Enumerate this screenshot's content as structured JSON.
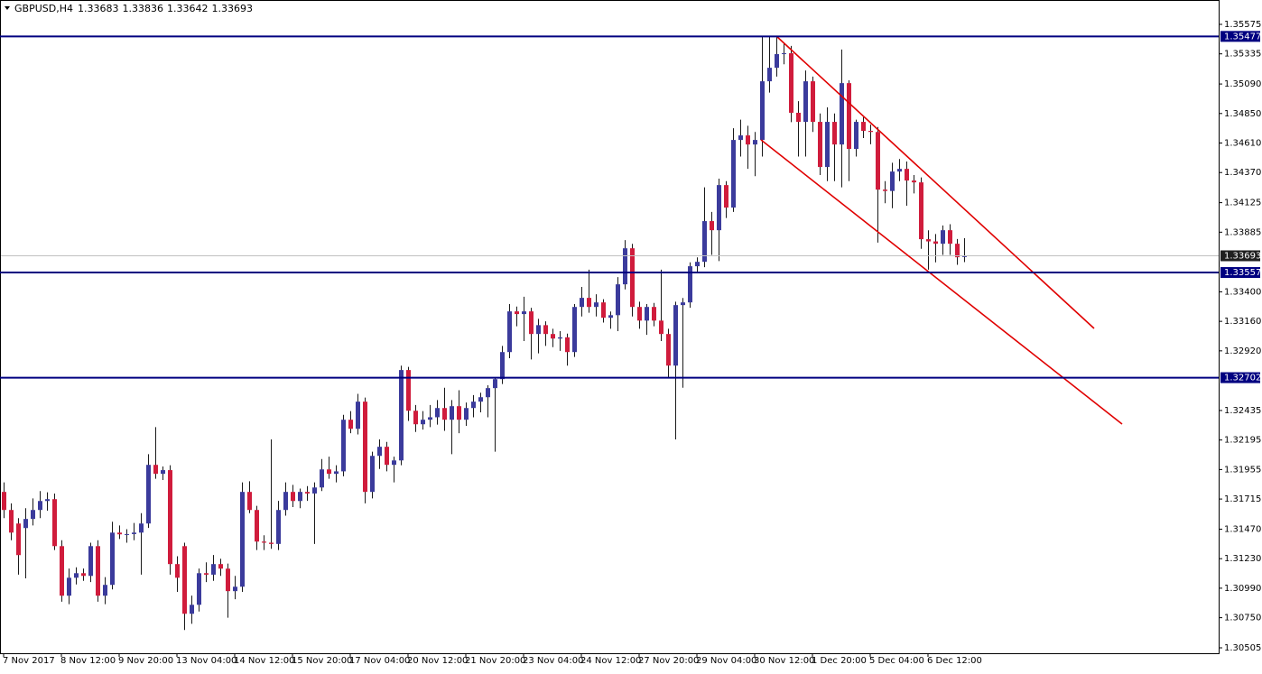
{
  "chart_data": {
    "type": "candlestick",
    "title": "GBPUSD,H4",
    "up_color": "#3b3b9c",
    "down_color": "#d01c3c",
    "wick_color": "#1a1a1a",
    "last_price_line_color": "#c0c0c0",
    "ylim": [
      1.30461,
      1.35773
    ],
    "yticks": [
      1.35575,
      1.35335,
      {
        "value": 1.3509,
        "label": "1.35090"
      },
      {
        "value": 1.3485,
        "label": "1.34850"
      },
      {
        "value": 1.3461,
        "label": "1.34610"
      },
      {
        "value": 1.3437,
        "label": "1.34370"
      },
      1.34125,
      1.33885,
      {
        "value": 1.334,
        "label": "1.33400"
      },
      {
        "value": 1.3316,
        "label": "1.33160"
      },
      {
        "value": 1.3292,
        "label": "1.32920"
      },
      1.32435,
      1.32195,
      1.31955,
      1.31715,
      {
        "value": 1.3147,
        "label": "1.31470"
      },
      {
        "value": 1.3123,
        "label": "1.31230"
      },
      {
        "value": 1.3099,
        "label": "1.30990"
      },
      {
        "value": 1.3075,
        "label": "1.30750"
      },
      1.30505
    ],
    "levels": [
      {
        "value": 1.35477,
        "color": "#000080"
      },
      {
        "value": 1.33557,
        "color": "#000080"
      },
      {
        "value": 1.32702,
        "color": "#000080"
      }
    ],
    "categories": [
      "7 Nov 2017",
      null,
      null,
      null,
      null,
      null,
      null,
      null,
      "8 Nov 12:00",
      null,
      null,
      null,
      null,
      null,
      null,
      null,
      "9 Nov 20:00",
      null,
      null,
      null,
      null,
      null,
      null,
      null,
      "13 Nov 04:00",
      null,
      null,
      null,
      null,
      null,
      null,
      null,
      "14 Nov 12:00",
      null,
      null,
      null,
      null,
      null,
      null,
      null,
      "15 Nov 20:00",
      null,
      null,
      null,
      null,
      null,
      null,
      null,
      "17 Nov 04:00",
      null,
      null,
      null,
      null,
      null,
      null,
      null,
      "20 Nov 12:00",
      null,
      null,
      null,
      null,
      null,
      null,
      null,
      "21 Nov 20:00",
      null,
      null,
      null,
      null,
      null,
      null,
      null,
      "23 Nov 04:00",
      null,
      null,
      null,
      null,
      null,
      null,
      null,
      "24 Nov 12:00",
      null,
      null,
      null,
      null,
      null,
      null,
      null,
      "27 Nov 20:00",
      null,
      null,
      null,
      null,
      null,
      null,
      null,
      "29 Nov 04:00",
      null,
      null,
      null,
      null,
      null,
      null,
      null,
      "30 Nov 12:00",
      null,
      null,
      null,
      null,
      null,
      null,
      null,
      "1 Dec 20:00",
      null,
      null,
      null,
      null,
      null,
      null,
      null,
      "5 Dec 04:00",
      null,
      null,
      null,
      null,
      null,
      null,
      null,
      "6 Dec 12:00",
      null,
      null,
      null,
      null,
      null
    ],
    "ohlc": [
      [
        1.31773,
        1.3185,
        1.3156,
        1.31626
      ],
      [
        1.31626,
        1.3168,
        1.3138,
        1.31442
      ],
      [
        1.31516,
        1.3156,
        1.311,
        1.31259
      ],
      [
        1.31479,
        1.3164,
        1.3107,
        1.31553
      ],
      [
        1.31553,
        1.3172,
        1.315,
        1.31626
      ],
      [
        1.31626,
        1.3178,
        1.3156,
        1.31699
      ],
      [
        1.31699,
        1.3177,
        1.3162,
        1.31714
      ],
      [
        1.31714,
        1.3176,
        1.313,
        1.31332
      ],
      [
        1.31332,
        1.3138,
        1.3088,
        1.30929
      ],
      [
        1.30929,
        1.3115,
        1.3086,
        1.31075
      ],
      [
        1.31075,
        1.3116,
        1.3102,
        1.31112
      ],
      [
        1.31112,
        1.3115,
        1.3105,
        1.3109
      ],
      [
        1.3109,
        1.3136,
        1.3104,
        1.31332
      ],
      [
        1.31332,
        1.3138,
        1.3088,
        1.30929
      ],
      [
        1.30929,
        1.3108,
        1.3086,
        1.31017
      ],
      [
        1.31017,
        1.3153,
        1.3098,
        1.31442
      ],
      [
        1.31442,
        1.315,
        1.3139,
        1.31428
      ],
      [
        1.31428,
        1.3147,
        1.3136,
        1.3143
      ],
      [
        1.3143,
        1.3152,
        1.3138,
        1.31442
      ],
      [
        1.31442,
        1.316,
        1.311,
        1.31516
      ],
      [
        1.31516,
        1.3208,
        1.3148,
        1.31993
      ],
      [
        1.31993,
        1.323,
        1.3188,
        1.3192
      ],
      [
        1.3192,
        1.3198,
        1.3187,
        1.3195
      ],
      [
        1.3195,
        1.3199,
        1.311,
        1.31186
      ],
      [
        1.31186,
        1.3125,
        1.3096,
        1.31075
      ],
      [
        1.31332,
        1.3136,
        1.3065,
        1.30782
      ],
      [
        1.30782,
        1.3093,
        1.307,
        1.30855
      ],
      [
        1.30855,
        1.3115,
        1.308,
        1.31112
      ],
      [
        1.31112,
        1.312,
        1.3104,
        1.311
      ],
      [
        1.311,
        1.3126,
        1.3105,
        1.31186
      ],
      [
        1.31186,
        1.3123,
        1.3109,
        1.31149
      ],
      [
        1.31149,
        1.3119,
        1.3075,
        1.30966
      ],
      [
        1.30966,
        1.3109,
        1.309,
        1.31002
      ],
      [
        1.31002,
        1.3185,
        1.3096,
        1.31773
      ],
      [
        1.31773,
        1.3186,
        1.316,
        1.31626
      ],
      [
        1.31626,
        1.3166,
        1.313,
        1.31369
      ],
      [
        1.31369,
        1.3142,
        1.313,
        1.3136
      ],
      [
        1.3136,
        1.322,
        1.3131,
        1.3135
      ],
      [
        1.3135,
        1.317,
        1.313,
        1.31626
      ],
      [
        1.31626,
        1.3185,
        1.3158,
        1.31773
      ],
      [
        1.31773,
        1.3183,
        1.3165,
        1.31699
      ],
      [
        1.31699,
        1.318,
        1.3164,
        1.31773
      ],
      [
        1.31773,
        1.3182,
        1.317,
        1.3176
      ],
      [
        1.3176,
        1.3185,
        1.3135,
        1.31809
      ],
      [
        1.31809,
        1.3204,
        1.3178,
        1.31956
      ],
      [
        1.31956,
        1.3206,
        1.3188,
        1.3192
      ],
      [
        1.3192,
        1.3199,
        1.3185,
        1.3194
      ],
      [
        1.3194,
        1.324,
        1.319,
        1.3236
      ],
      [
        1.3236,
        1.3243,
        1.3225,
        1.32286
      ],
      [
        1.32286,
        1.3257,
        1.3224,
        1.32507
      ],
      [
        1.32507,
        1.3254,
        1.3168,
        1.31773
      ],
      [
        1.31773,
        1.321,
        1.3172,
        1.32066
      ],
      [
        1.32066,
        1.322,
        1.3196,
        1.3214
      ],
      [
        1.3214,
        1.3218,
        1.3194,
        1.31993
      ],
      [
        1.31993,
        1.3206,
        1.3185,
        1.32029
      ],
      [
        1.32029,
        1.328,
        1.3199,
        1.32764
      ],
      [
        1.32764,
        1.3279,
        1.3235,
        1.32433
      ],
      [
        1.32433,
        1.3248,
        1.3226,
        1.32323
      ],
      [
        1.32323,
        1.3243,
        1.3228,
        1.3236
      ],
      [
        1.3236,
        1.3248,
        1.323,
        1.3238
      ],
      [
        1.3238,
        1.3252,
        1.3232,
        1.32455
      ],
      [
        1.32455,
        1.3262,
        1.3227,
        1.3236
      ],
      [
        1.3236,
        1.3252,
        1.3208,
        1.3247
      ],
      [
        1.3247,
        1.326,
        1.3225,
        1.3236
      ],
      [
        1.3236,
        1.325,
        1.3231,
        1.32455
      ],
      [
        1.32455,
        1.3256,
        1.3238,
        1.32507
      ],
      [
        1.32507,
        1.3258,
        1.3242,
        1.32543
      ],
      [
        1.32543,
        1.3264,
        1.3238,
        1.32617
      ],
      [
        1.32617,
        1.327,
        1.321,
        1.3269
      ],
      [
        1.3269,
        1.3296,
        1.3265,
        1.3291
      ],
      [
        1.3291,
        1.333,
        1.3286,
        1.33241
      ],
      [
        1.33241,
        1.3328,
        1.3312,
        1.33219
      ],
      [
        1.33219,
        1.3336,
        1.33,
        1.33241
      ],
      [
        1.33241,
        1.3327,
        1.3285,
        1.33057
      ],
      [
        1.33057,
        1.3318,
        1.329,
        1.33129
      ],
      [
        1.33129,
        1.3316,
        1.3296,
        1.33057
      ],
      [
        1.33057,
        1.331,
        1.3295,
        1.3302
      ],
      [
        1.3302,
        1.3308,
        1.3292,
        1.3303
      ],
      [
        1.3303,
        1.3306,
        1.328,
        1.3291
      ],
      [
        1.3291,
        1.333,
        1.3287,
        1.33277
      ],
      [
        1.33277,
        1.3344,
        1.332,
        1.33351
      ],
      [
        1.33351,
        1.3358,
        1.3323,
        1.33277
      ],
      [
        1.33277,
        1.3338,
        1.332,
        1.33314
      ],
      [
        1.33314,
        1.3334,
        1.3315,
        1.33189
      ],
      [
        1.33189,
        1.3324,
        1.331,
        1.3321
      ],
      [
        1.3321,
        1.3352,
        1.3308,
        1.33461
      ],
      [
        1.33461,
        1.3382,
        1.3342,
        1.33754
      ],
      [
        1.33754,
        1.3379,
        1.332,
        1.33277
      ],
      [
        1.33277,
        1.3332,
        1.331,
        1.33166
      ],
      [
        1.33166,
        1.333,
        1.3305,
        1.33277
      ],
      [
        1.33277,
        1.3331,
        1.3312,
        1.33166
      ],
      [
        1.33166,
        1.3358,
        1.33,
        1.33057
      ],
      [
        1.33057,
        1.331,
        1.327,
        1.328
      ],
      [
        1.328,
        1.3332,
        1.322,
        1.33292
      ],
      [
        1.33292,
        1.3335,
        1.3262,
        1.33314
      ],
      [
        1.33314,
        1.3364,
        1.3327,
        1.33608
      ],
      [
        1.33608,
        1.3368,
        1.3356,
        1.33644
      ],
      [
        1.33644,
        1.3425,
        1.336,
        1.33975
      ],
      [
        1.33975,
        1.3405,
        1.337,
        1.33901
      ],
      [
        1.33901,
        1.3432,
        1.3365,
        1.34268
      ],
      [
        1.34268,
        1.343,
        1.34,
        1.34085
      ],
      [
        1.34085,
        1.3473,
        1.3405,
        1.34635
      ],
      [
        1.34635,
        1.348,
        1.345,
        1.34672
      ],
      [
        1.34672,
        1.3475,
        1.344,
        1.34598
      ],
      [
        1.34598,
        1.347,
        1.3434,
        1.34635
      ],
      [
        1.34635,
        1.3548,
        1.345,
        1.35112
      ],
      [
        1.35112,
        1.3548,
        1.3502,
        1.35222
      ],
      [
        1.35222,
        1.3548,
        1.3515,
        1.35333
      ],
      [
        1.35333,
        1.3542,
        1.3525,
        1.3534
      ],
      [
        1.3534,
        1.354,
        1.3478,
        1.34856
      ],
      [
        1.34856,
        1.3495,
        1.345,
        1.34782
      ],
      [
        1.34782,
        1.352,
        1.345,
        1.35112
      ],
      [
        1.35112,
        1.3515,
        1.347,
        1.34782
      ],
      [
        1.34782,
        1.3485,
        1.3435,
        1.34415
      ],
      [
        1.34415,
        1.349,
        1.343,
        1.34782
      ],
      [
        1.34782,
        1.3485,
        1.343,
        1.34598
      ],
      [
        1.34598,
        1.3537,
        1.3425,
        1.35097
      ],
      [
        1.35097,
        1.3512,
        1.343,
        1.34562
      ],
      [
        1.34562,
        1.348,
        1.345,
        1.34782
      ],
      [
        1.34782,
        1.3482,
        1.3465,
        1.34709
      ],
      [
        1.34709,
        1.3476,
        1.346,
        1.347
      ],
      [
        1.347,
        1.3474,
        1.338,
        1.34231
      ],
      [
        1.34231,
        1.343,
        1.3412,
        1.3422
      ],
      [
        1.3422,
        1.3445,
        1.3408,
        1.34378
      ],
      [
        1.34378,
        1.3448,
        1.343,
        1.344
      ],
      [
        1.344,
        1.3446,
        1.341,
        1.34305
      ],
      [
        1.34305,
        1.3435,
        1.342,
        1.3429
      ],
      [
        1.3429,
        1.3433,
        1.3375,
        1.33828
      ],
      [
        1.33828,
        1.339,
        1.3358,
        1.3381
      ],
      [
        1.3381,
        1.3387,
        1.3364,
        1.33791
      ],
      [
        1.33791,
        1.3394,
        1.337,
        1.33901
      ],
      [
        1.33901,
        1.3395,
        1.337,
        1.33791
      ],
      [
        1.33791,
        1.3383,
        1.3362,
        1.33681
      ],
      [
        1.33683,
        1.33836,
        1.33642,
        1.33693
      ]
    ]
  }
}
